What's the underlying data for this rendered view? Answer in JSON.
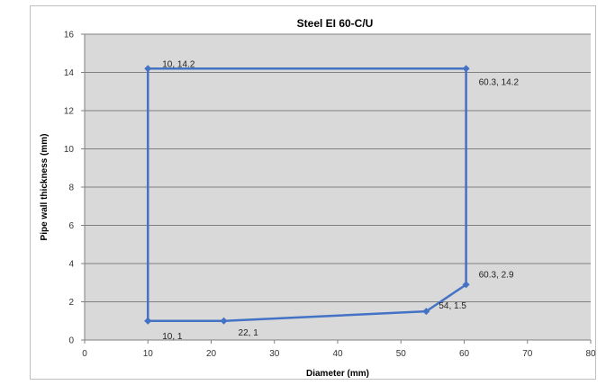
{
  "chart_data": {
    "type": "scatter",
    "title": "Steel EI 60-C/U",
    "xlabel": "Diameter (mm)",
    "ylabel": "Pipe wall thickness (mm)",
    "xlim": [
      0,
      80
    ],
    "ylim": [
      0,
      16
    ],
    "x_ticks": [
      0,
      10,
      20,
      30,
      40,
      50,
      60,
      70,
      80
    ],
    "y_ticks": [
      0,
      2,
      4,
      6,
      8,
      10,
      12,
      14,
      16
    ],
    "grid": "horizontal",
    "legend": "none",
    "series": [
      {
        "points": [
          {
            "x": 10,
            "y": 1,
            "label": "10, 1"
          },
          {
            "x": 10,
            "y": 14.2,
            "label": "10, 14.2"
          },
          {
            "x": 60.3,
            "y": 14.2,
            "label": "60.3, 14.2"
          },
          {
            "x": 60.3,
            "y": 2.9,
            "label": "60.3, 2.9"
          },
          {
            "x": 54,
            "y": 1.5,
            "label": "54, 1.5"
          },
          {
            "x": 22,
            "y": 1,
            "label": "22, 1"
          },
          {
            "x": 10,
            "y": 1,
            "label": ""
          }
        ],
        "color": "#4472c4"
      }
    ],
    "colors": {
      "plot_background": "#d9d9d9",
      "gridline": "#808080",
      "series": "#4472c4"
    }
  }
}
